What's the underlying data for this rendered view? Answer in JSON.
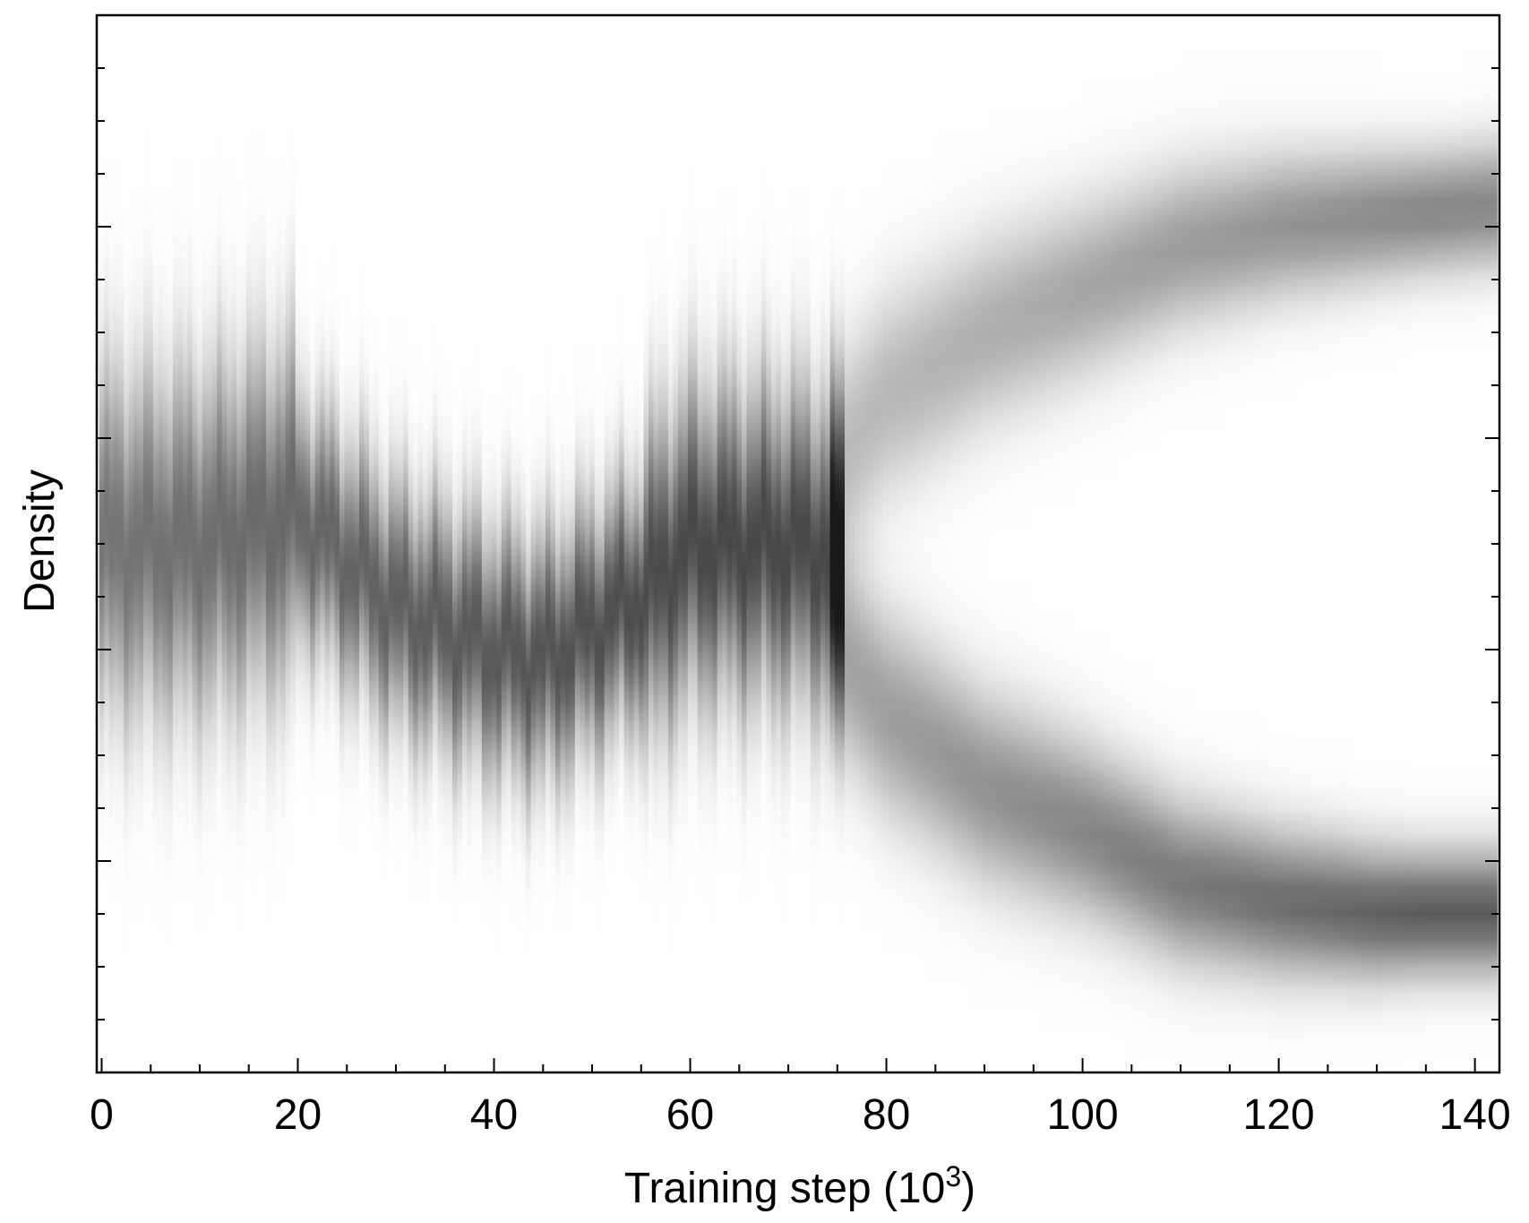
{
  "chart_data": {
    "type": "heatmap",
    "title": "",
    "xlabel": "Training step (10",
    "xlabel_sup": "3",
    "xlabel_close": ")",
    "ylabel": "Density",
    "xlim": [
      -0.5,
      142.5
    ],
    "ylim": [
      0,
      1
    ],
    "x_ticks": [
      0,
      20,
      40,
      60,
      80,
      100,
      120,
      140
    ],
    "x_tick_labels": [
      "0",
      "20",
      "40",
      "60",
      "80",
      "100",
      "120",
      "140"
    ],
    "y_tick_labels": [],
    "grid": false,
    "colormap": "white-to-black (grayscale)",
    "bifurcation_step": 75,
    "modes": [
      {
        "points": [
          [
            0,
            0.5
          ],
          [
            10,
            0.5
          ],
          [
            20,
            0.53
          ],
          [
            30,
            0.44
          ],
          [
            40,
            0.4
          ],
          [
            45,
            0.39
          ],
          [
            50,
            0.42
          ],
          [
            55,
            0.45
          ],
          [
            60,
            0.5
          ],
          [
            65,
            0.5
          ],
          [
            70,
            0.5
          ],
          [
            75,
            0.49
          ]
        ],
        "peak_density": 0.72
      },
      {
        "points": [
          [
            75,
            0.58
          ],
          [
            80,
            0.64
          ],
          [
            90,
            0.7
          ],
          [
            100,
            0.74
          ],
          [
            110,
            0.78
          ],
          [
            120,
            0.8
          ],
          [
            130,
            0.81
          ],
          [
            142,
            0.82
          ]
        ],
        "peak_density": 0.48
      },
      {
        "points": [
          [
            75,
            0.4
          ],
          [
            80,
            0.34
          ],
          [
            90,
            0.27
          ],
          [
            100,
            0.23
          ],
          [
            110,
            0.18
          ],
          [
            120,
            0.16
          ],
          [
            130,
            0.15
          ],
          [
            142,
            0.15
          ]
        ],
        "peak_density": 0.65
      }
    ]
  }
}
